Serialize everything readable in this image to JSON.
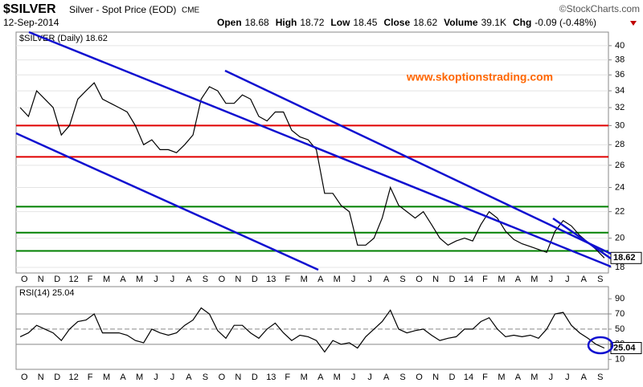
{
  "header": {
    "symbol": "$SILVER",
    "name": "Silver - Spot Price (EOD)",
    "exchange": "CME",
    "source": "©StockCharts.com",
    "date": "12-Sep-2014",
    "quote": [
      {
        "label": "Open",
        "value": "18.68"
      },
      {
        "label": "High",
        "value": "18.72"
      },
      {
        "label": "Low",
        "value": "18.45"
      },
      {
        "label": "Close",
        "value": "18.62"
      },
      {
        "label": "Volume",
        "value": "39.1K"
      },
      {
        "label": "Chg",
        "value": "-0.09 (-0.48%)"
      }
    ]
  },
  "chart_data": [
    {
      "type": "line",
      "title": "$SILVER (Daily) 18.62",
      "annotation": "www.skoptionstrading.com",
      "categories": [
        "O",
        null,
        "N",
        null,
        "D",
        null,
        "12",
        null,
        "F",
        null,
        "M",
        null,
        "A",
        null,
        "M",
        null,
        "J",
        null,
        "J",
        null,
        "A",
        null,
        "S",
        null,
        "O",
        null,
        "N",
        null,
        "D",
        null,
        "13",
        null,
        "F",
        null,
        "M",
        null,
        "A",
        null,
        "M",
        null,
        "J",
        null,
        "J",
        null,
        "A",
        null,
        "S",
        null,
        "O",
        null,
        "N",
        null,
        "D",
        null,
        "14",
        null,
        "F",
        null,
        "M",
        null,
        "A",
        null,
        "M",
        null,
        "J",
        null,
        "J",
        null,
        "A",
        null,
        "S",
        null
      ],
      "values": [
        32,
        31,
        34,
        33,
        32,
        29,
        30,
        33,
        34,
        35,
        33,
        32.5,
        32,
        31.5,
        30,
        28,
        28.5,
        27.5,
        27.5,
        27.2,
        28,
        29,
        33,
        34.5,
        34,
        32.5,
        32.5,
        33.5,
        33,
        31,
        30.5,
        31.5,
        31.5,
        29.5,
        28.8,
        28.5,
        27.5,
        23.5,
        23.5,
        22.5,
        22,
        19.5,
        19.5,
        20,
        21.5,
        24,
        22.5,
        22,
        21.5,
        22,
        21,
        20,
        19.5,
        19.8,
        20,
        19.8,
        21,
        22,
        21.5,
        20.5,
        19.9,
        19.6,
        19.4,
        19.2,
        19,
        20.5,
        21.3,
        20.9,
        20.2,
        19.7,
        19.2,
        18.62
      ],
      "color": "#000000",
      "ylim": [
        17.64,
        42.0
      ],
      "yticks": [
        18,
        20,
        22,
        24,
        26,
        28,
        30,
        32,
        34,
        36,
        38,
        40
      ],
      "log_scale": true,
      "grid": true,
      "hlines": [
        {
          "value": 30,
          "color": "#e00000"
        },
        {
          "value": 26.8,
          "color": "#e00000"
        },
        {
          "value": 22.4,
          "color": "#008000"
        },
        {
          "value": 20.4,
          "color": "#008000"
        },
        {
          "value": 19.1,
          "color": "#008000"
        }
      ]
    },
    {
      "type": "line",
      "title": "RSI(14) 25.04",
      "categories": [
        "O",
        null,
        "N",
        null,
        "D",
        null,
        "12",
        null,
        "F",
        null,
        "M",
        null,
        "A",
        null,
        "M",
        null,
        "J",
        null,
        "J",
        null,
        "A",
        null,
        "S",
        null,
        "O",
        null,
        "N",
        null,
        "D",
        null,
        "13",
        null,
        "F",
        null,
        "M",
        null,
        "A",
        null,
        "M",
        null,
        "J",
        null,
        "J",
        null,
        "A",
        null,
        "S",
        null,
        "O",
        null,
        "N",
        null,
        "D",
        null,
        "14",
        null,
        "F",
        null,
        "M",
        null,
        "A",
        null,
        "M",
        null,
        "J",
        null,
        "J",
        null,
        "A",
        null,
        "S",
        null
      ],
      "values": [
        40,
        45,
        55,
        50,
        45,
        35,
        50,
        60,
        62,
        70,
        45,
        45,
        45,
        42,
        35,
        32,
        50,
        45,
        42,
        45,
        55,
        62,
        78,
        70,
        48,
        38,
        55,
        55,
        45,
        38,
        50,
        58,
        45,
        35,
        42,
        40,
        35,
        20,
        35,
        30,
        32,
        25,
        40,
        50,
        60,
        75,
        50,
        45,
        48,
        50,
        42,
        35,
        38,
        40,
        50,
        50,
        60,
        65,
        50,
        40,
        42,
        40,
        42,
        38,
        50,
        70,
        72,
        55,
        45,
        38,
        30,
        25.04
      ],
      "color": "#000000",
      "ylim": [
        -3,
        106
      ],
      "yticks": [
        10,
        30,
        50,
        70,
        90
      ],
      "log_scale": false,
      "grid": false,
      "hlines": [
        {
          "value": 70,
          "color": "#888888"
        },
        {
          "value": 50,
          "color": "#888888"
        },
        {
          "value": 30,
          "color": "#888888"
        }
      ]
    }
  ]
}
